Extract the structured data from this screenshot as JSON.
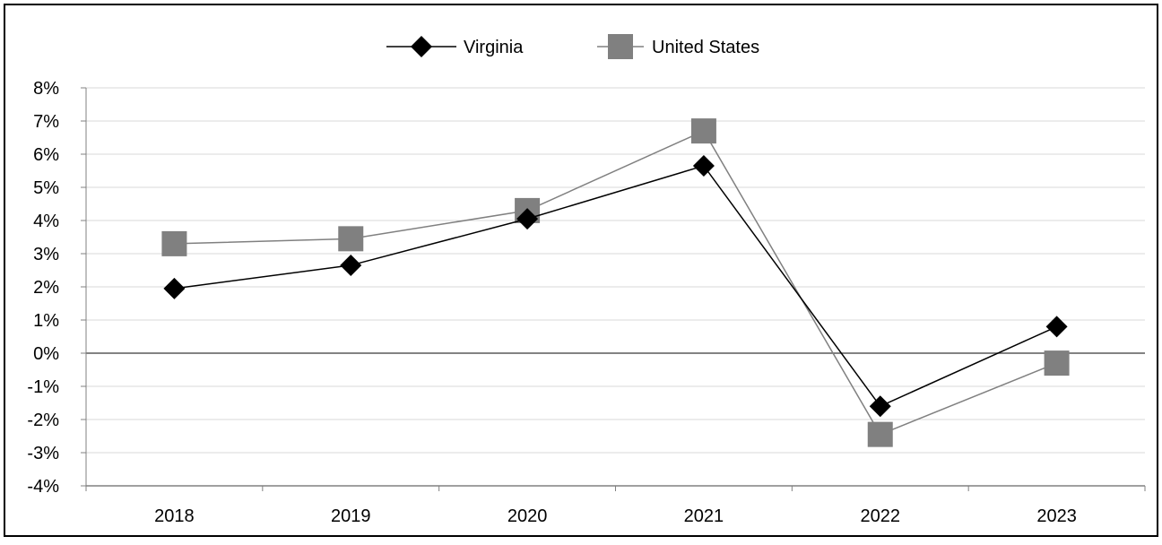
{
  "chart_data": {
    "type": "line",
    "categories": [
      "2018",
      "2019",
      "2020",
      "2021",
      "2022",
      "2023"
    ],
    "series": [
      {
        "name": "Virginia",
        "values": [
          1.95,
          2.65,
          4.05,
          5.65,
          -1.6,
          0.8
        ],
        "color": "#000000",
        "marker": "diamond"
      },
      {
        "name": "United States",
        "values": [
          3.3,
          3.45,
          4.3,
          6.7,
          -2.45,
          -0.3
        ],
        "color": "#808080",
        "marker": "square"
      }
    ],
    "yticks": [
      "8%",
      "7%",
      "6%",
      "5%",
      "4%",
      "3%",
      "2%",
      "1%",
      "0%",
      "-1%",
      "-2%",
      "-3%",
      "-4%"
    ],
    "ylim": [
      -4,
      8
    ],
    "y_unit": "%",
    "grid": true,
    "legend_position": "top-center",
    "title": "",
    "xlabel": "",
    "ylabel": ""
  }
}
